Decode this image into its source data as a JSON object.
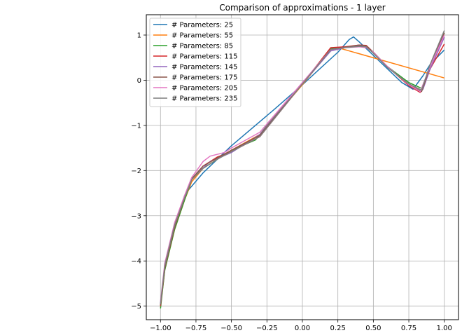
{
  "chart_data": {
    "type": "line",
    "title": "Comparison of approximations - 1 layer",
    "xlabel": "",
    "ylabel": "",
    "xlim": [
      -1.1,
      1.1
    ],
    "ylim": [
      -5.3,
      1.45
    ],
    "x_ticks": [
      -1.0,
      -0.75,
      -0.5,
      -0.25,
      0.0,
      0.25,
      0.5,
      0.75,
      1.0
    ],
    "x_tick_labels": [
      "−1.00",
      "−0.75",
      "−0.50",
      "−0.25",
      "0.00",
      "0.25",
      "0.50",
      "0.75",
      "1.00"
    ],
    "y_ticks": [
      -5,
      -4,
      -3,
      -2,
      -1,
      0,
      1
    ],
    "y_tick_labels": [
      "−5",
      "−4",
      "−3",
      "−2",
      "−1",
      "0",
      "1"
    ],
    "grid": true,
    "legend_position": "top-left",
    "series": [
      {
        "name": "# Parameters: 25",
        "color": "#1f77b4",
        "x": [
          -1.0,
          -0.97,
          -0.9,
          -0.83,
          -0.8,
          -0.7,
          -0.5,
          -0.2,
          0.0,
          0.25,
          0.33,
          0.36,
          0.4,
          0.5,
          0.6,
          0.7,
          0.78,
          0.85,
          0.9,
          1.0
        ],
        "y": [
          -4.95,
          -4.2,
          -3.25,
          -2.55,
          -2.42,
          -2.05,
          -1.45,
          -0.65,
          -0.1,
          0.62,
          0.9,
          0.96,
          0.85,
          0.55,
          0.25,
          -0.05,
          -0.2,
          0.1,
          0.35,
          0.67
        ]
      },
      {
        "name": "# Parameters: 55",
        "color": "#ff7f0e",
        "x": [
          -1.0,
          -0.97,
          -0.9,
          -0.83,
          -0.78,
          -0.7,
          -0.5,
          -0.3,
          0.0,
          0.2,
          0.25,
          1.0
        ],
        "y": [
          -5.0,
          -4.2,
          -3.3,
          -2.65,
          -2.25,
          -1.95,
          -1.55,
          -1.2,
          -0.1,
          0.68,
          0.72,
          0.05
        ]
      },
      {
        "name": "# Parameters: 85",
        "color": "#2ca02c",
        "x": [
          -1.0,
          -0.97,
          -0.9,
          -0.83,
          -0.78,
          -0.7,
          -0.6,
          -0.5,
          -0.33,
          -0.25,
          0.0,
          0.2,
          0.3,
          0.4,
          0.45,
          0.5,
          0.6,
          0.75,
          0.84,
          0.9,
          1.0
        ],
        "y": [
          -5.05,
          -4.2,
          -3.3,
          -2.65,
          -2.2,
          -1.95,
          -1.75,
          -1.55,
          -1.32,
          -1.0,
          -0.08,
          0.7,
          0.73,
          0.76,
          0.74,
          0.6,
          0.3,
          -0.05,
          -0.18,
          0.3,
          1.05
        ]
      },
      {
        "name": "# Parameters: 115",
        "color": "#d62728",
        "x": [
          -1.0,
          -0.97,
          -0.9,
          -0.83,
          -0.78,
          -0.7,
          -0.6,
          -0.5,
          -0.3,
          0.0,
          0.2,
          0.3,
          0.4,
          0.45,
          0.5,
          0.6,
          0.75,
          0.83,
          0.9,
          1.0
        ],
        "y": [
          -5.0,
          -4.15,
          -3.25,
          -2.6,
          -2.2,
          -1.9,
          -1.7,
          -1.58,
          -1.25,
          -0.08,
          0.72,
          0.74,
          0.78,
          0.77,
          0.62,
          0.3,
          -0.12,
          -0.27,
          0.25,
          0.8
        ]
      },
      {
        "name": "# Parameters: 145",
        "color": "#9467bd",
        "x": [
          -1.0,
          -0.97,
          -0.9,
          -0.83,
          -0.78,
          -0.72,
          -0.65,
          -0.5,
          -0.3,
          0.0,
          0.2,
          0.3,
          0.4,
          0.45,
          0.5,
          0.6,
          0.75,
          0.83,
          0.85,
          0.9,
          1.0
        ],
        "y": [
          -4.95,
          -4.1,
          -3.2,
          -2.6,
          -2.2,
          -2.0,
          -1.8,
          -1.6,
          -1.2,
          -0.08,
          0.65,
          0.72,
          0.76,
          0.74,
          0.62,
          0.3,
          -0.1,
          -0.25,
          -0.2,
          0.25,
          0.95
        ]
      },
      {
        "name": "# Parameters: 175",
        "color": "#8c564b",
        "x": [
          -1.0,
          -0.97,
          -0.9,
          -0.83,
          -0.78,
          -0.7,
          -0.6,
          -0.5,
          -0.3,
          0.0,
          0.2,
          0.3,
          0.4,
          0.45,
          0.5,
          0.6,
          0.75,
          0.84,
          0.9,
          1.0
        ],
        "y": [
          -4.98,
          -4.15,
          -3.25,
          -2.6,
          -2.18,
          -1.9,
          -1.72,
          -1.55,
          -1.22,
          -0.08,
          0.68,
          0.73,
          0.78,
          0.76,
          0.62,
          0.3,
          -0.1,
          -0.25,
          0.3,
          1.05
        ]
      },
      {
        "name": "# Parameters: 205",
        "color": "#e377c2",
        "x": [
          -1.0,
          -0.97,
          -0.9,
          -0.83,
          -0.78,
          -0.7,
          -0.65,
          -0.55,
          -0.5,
          -0.3,
          0.0,
          0.2,
          0.3,
          0.4,
          0.45,
          0.5,
          0.6,
          0.75,
          0.83,
          0.9,
          1.0
        ],
        "y": [
          -4.9,
          -4.05,
          -3.15,
          -2.55,
          -2.15,
          -1.8,
          -1.68,
          -1.6,
          -1.5,
          -1.15,
          -0.05,
          0.68,
          0.72,
          0.74,
          0.72,
          0.62,
          0.3,
          -0.1,
          -0.25,
          0.3,
          1.0
        ]
      },
      {
        "name": "# Parameters: 235",
        "color": "#7f7f7f",
        "x": [
          -1.0,
          -0.97,
          -0.9,
          -0.83,
          -0.78,
          -0.7,
          -0.6,
          -0.5,
          -0.3,
          0.0,
          0.2,
          0.3,
          0.4,
          0.45,
          0.5,
          0.6,
          0.75,
          0.84,
          0.9,
          1.0
        ],
        "y": [
          -4.95,
          -4.1,
          -3.2,
          -2.6,
          -2.2,
          -1.95,
          -1.75,
          -1.58,
          -1.25,
          -0.08,
          0.68,
          0.72,
          0.75,
          0.74,
          0.6,
          0.28,
          -0.08,
          -0.22,
          0.35,
          1.1
        ]
      }
    ]
  }
}
